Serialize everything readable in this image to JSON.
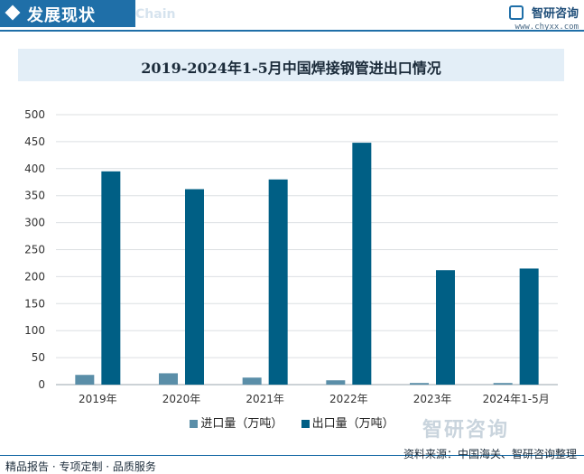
{
  "header": {
    "title": "发展现状",
    "subtitle": "Chain",
    "brand_name": "智研咨询",
    "brand_url": "www.chyxx.com"
  },
  "chart_data": {
    "type": "bar",
    "title": "2019-2024年1-5月中国焊接钢管进出口情况",
    "categories": [
      "2019年",
      "2020年",
      "2021年",
      "2022年",
      "2023年",
      "2024年1-5月"
    ],
    "series": [
      {
        "name": "进口量（万吨）",
        "color": "#5a8ea8",
        "values": [
          18,
          21,
          13,
          8,
          3,
          3
        ]
      },
      {
        "name": "出口量（万吨）",
        "color": "#005f85",
        "values": [
          395,
          362,
          380,
          448,
          212,
          215
        ]
      }
    ],
    "ylim": [
      0,
      500
    ],
    "yticks": [
      0,
      50,
      100,
      150,
      200,
      250,
      300,
      350,
      400,
      450,
      500
    ],
    "grid": true,
    "legend_position": "bottom"
  },
  "watermark": "智研咨询",
  "footer": {
    "left": "精品报告 · 专项定制 · 品质服务",
    "right": "资料来源：中国海关、智研咨询整理"
  }
}
